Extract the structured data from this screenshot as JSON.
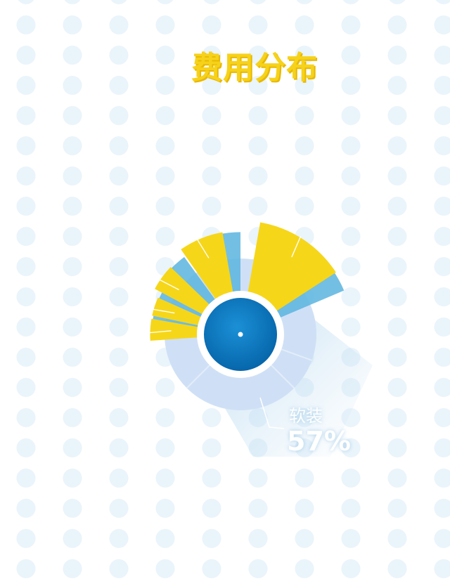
{
  "title": "费用分布",
  "chart_data": {
    "type": "pie",
    "title": "费用分布",
    "callout": {
      "label": "软装",
      "value": "57%"
    },
    "slices": [
      {
        "label": "软装",
        "value": 57,
        "color": "#cfe0f6"
      }
    ],
    "rays": [
      {
        "value": 14
      },
      {
        "value": 11
      },
      {
        "value": 9
      },
      {
        "value": 7
      },
      {
        "value": 7
      }
    ],
    "colors": {
      "ray_fill": "#f6d619",
      "ray_shadow": "#5ab4df",
      "inner_circle": "#0a78c2",
      "ring": "#cfe0f6",
      "line": "#ffffff"
    }
  }
}
